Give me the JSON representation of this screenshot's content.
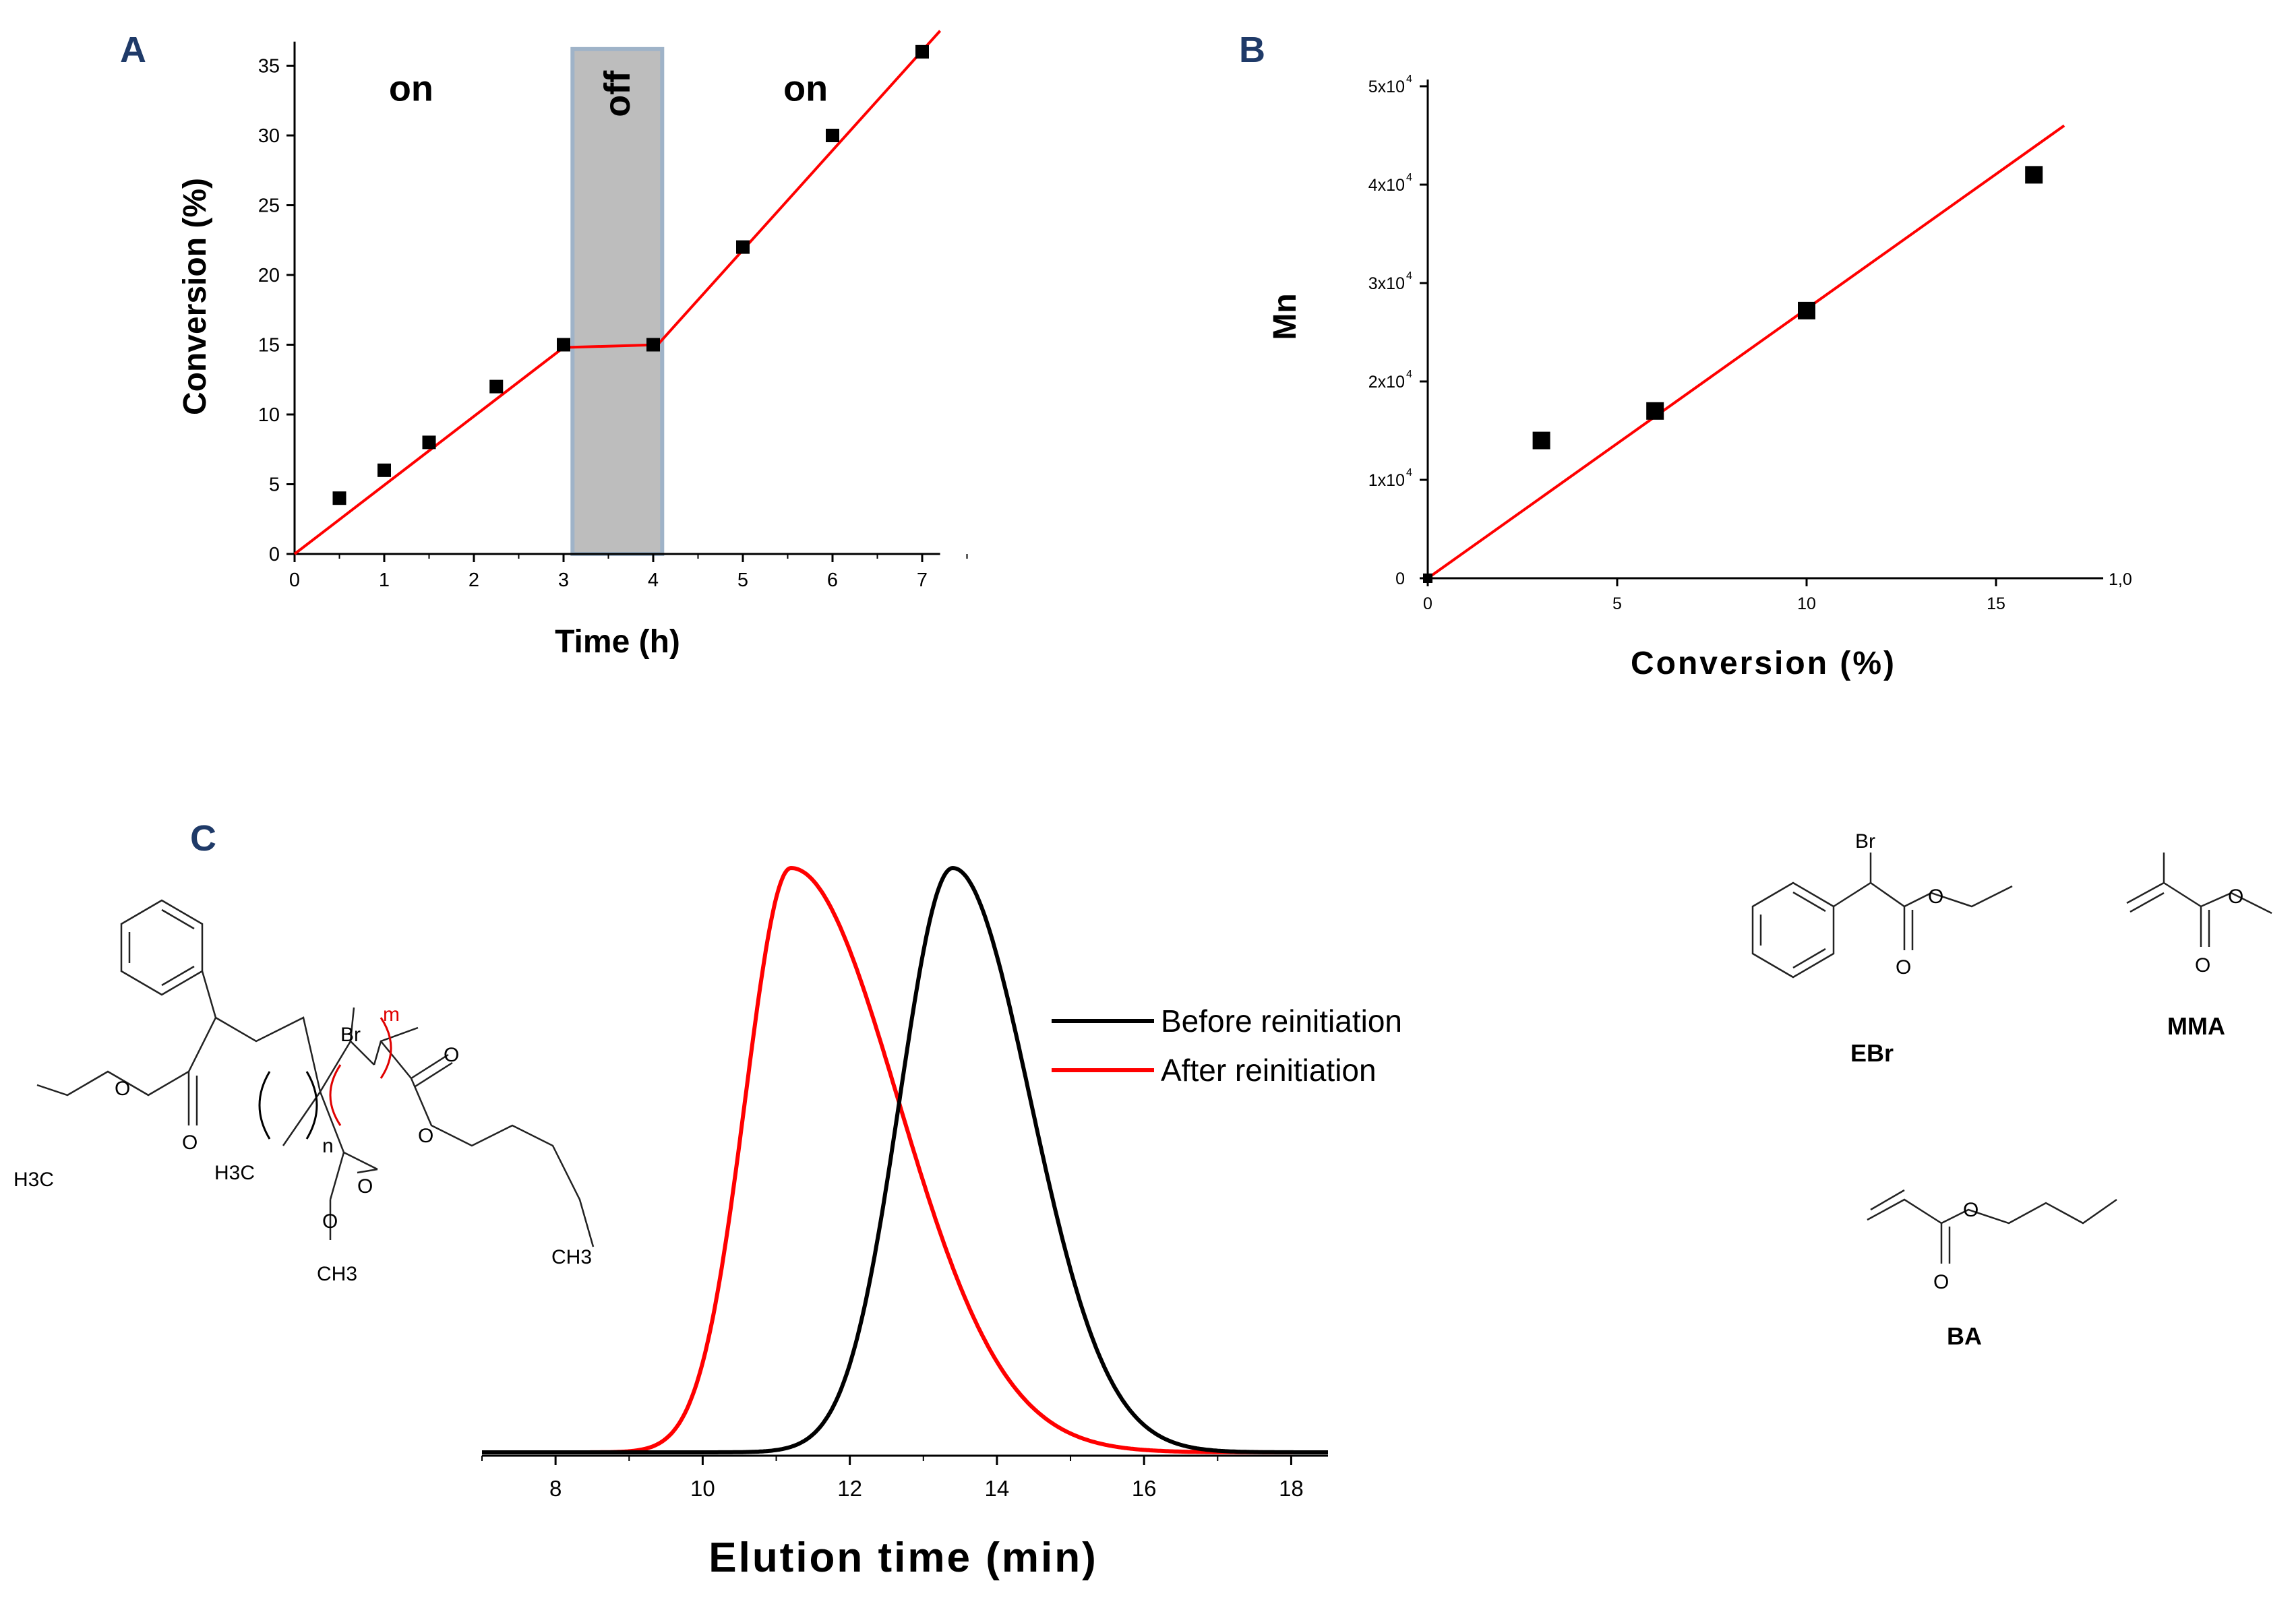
{
  "panels": {
    "a": "A",
    "b": "B",
    "c": "C"
  },
  "chart_data": [
    {
      "type": "scatter",
      "panel": "A",
      "title": "",
      "xlabel": "Time (h)",
      "ylabel": "Conversion (%)",
      "xlim": [
        0,
        7.2
      ],
      "ylim": [
        0,
        36
      ],
      "xticks": [
        0,
        1,
        2,
        3,
        4,
        5,
        6,
        7
      ],
      "yticks": [
        0,
        5,
        10,
        15,
        20,
        25,
        30,
        35
      ],
      "x": [
        0.5,
        1,
        1.5,
        2.25,
        3,
        4,
        5,
        6,
        7
      ],
      "y": [
        4,
        6,
        8,
        12,
        15,
        15,
        22,
        30,
        36
      ],
      "fit_line": {
        "x": [
          0,
          3,
          4.05,
          7.2
        ],
        "y": [
          0,
          14.8,
          15.0,
          37.5
        ]
      },
      "shaded_region": {
        "x_from": 3.1,
        "x_to": 4.1
      },
      "annotations": [
        {
          "text": "on",
          "x": 1.3,
          "y": 32.5
        },
        {
          "text": "off",
          "x": 3.6,
          "y": 32.5
        },
        {
          "text": "on",
          "x": 5.7,
          "y": 32.5
        }
      ]
    },
    {
      "type": "scatter",
      "panel": "B",
      "title": "",
      "xlabel": "Conversion (%)",
      "ylabel": "Mn",
      "xlim": [
        0,
        18
      ],
      "ylim": [
        0,
        50000
      ],
      "xticks": [
        0,
        5,
        10,
        15
      ],
      "yticks": [
        {
          "value": 0,
          "label": "0",
          "exp": ""
        },
        {
          "value": 10000,
          "label": "1x10",
          "exp": "4"
        },
        {
          "value": 20000,
          "label": "2x10",
          "exp": "4"
        },
        {
          "value": 30000,
          "label": "3x10",
          "exp": "4"
        },
        {
          "value": 40000,
          "label": "4x10",
          "exp": "4"
        },
        {
          "value": 50000,
          "label": "5x10",
          "exp": "4"
        }
      ],
      "right_label": "1,0",
      "x": [
        0,
        3,
        6,
        10,
        16
      ],
      "y": [
        0,
        14000,
        17000,
        27200,
        41000
      ],
      "fit_line": {
        "x": [
          0,
          16.8
        ],
        "y": [
          0,
          46000
        ]
      }
    },
    {
      "type": "line",
      "panel": "C",
      "title": "",
      "xlabel": "Elution time (min)",
      "ylabel": "",
      "xlim": [
        7,
        18.5
      ],
      "xticks": [
        8,
        10,
        12,
        14,
        16,
        18
      ],
      "series": [
        {
          "name": "Before reinitiation",
          "color": "#000000",
          "peak_x": 13.4,
          "peak_y": 1.0
        },
        {
          "name": "After reinitiation",
          "color": "#ff0000",
          "peak_x": 11.2,
          "peak_y": 1.0
        }
      ]
    }
  ],
  "chemistry": {
    "polymer": {
      "br": "Br",
      "h3c_left": "H3C",
      "h3c_mid": "H3C",
      "o1": "O",
      "o2": "O",
      "o3": "O",
      "o4": "O",
      "o5": "O",
      "o6": "O",
      "ch3_a": "CH3",
      "ch3_b": "CH3",
      "n": "n",
      "m": "m"
    },
    "ebr": {
      "name": "EBr",
      "br": "Br",
      "o1": "O",
      "o2": "O"
    },
    "mma": {
      "name": "MMA",
      "o1": "O",
      "o2": "O"
    },
    "ba": {
      "name": "BA",
      "o1": "O",
      "o2": "O"
    }
  },
  "colors": {
    "fit": "#ff0000",
    "marker": "#000000",
    "shade": "#bdbdbd",
    "panel_label": "#1f3a68",
    "before": "#000000",
    "after": "#ff0000"
  }
}
